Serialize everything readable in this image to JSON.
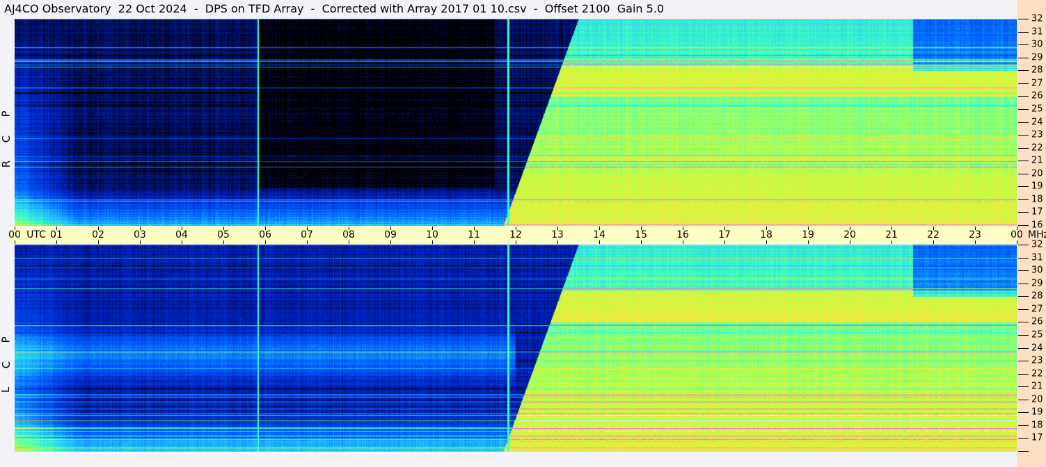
{
  "title": "AJ4CO Observatory  22 Oct 2024  -  DPS on TFD Array  -  Corrected with Array 2017 01 10.csv  -  Offset 2100  Gain 5.0",
  "chart_data": {
    "type": "heatmap",
    "panels": [
      {
        "label_letters": [
          "R",
          "C",
          "P"
        ]
      },
      {
        "label_letters": [
          "L",
          "C",
          "P"
        ]
      }
    ],
    "x_tick_labels": [
      "00",
      "01",
      "02",
      "03",
      "04",
      "05",
      "06",
      "07",
      "08",
      "09",
      "10",
      "11",
      "12",
      "13",
      "14",
      "15",
      "16",
      "17",
      "18",
      "19",
      "20",
      "21",
      "22",
      "23",
      "00"
    ],
    "x_unit_label": "UTC",
    "y_unit_label": "MHz",
    "xlim_hours_utc": [
      0,
      24
    ],
    "ylim_mhz": [
      16,
      32
    ],
    "y_tick_labels": [
      "32",
      "31",
      "30",
      "29",
      "28",
      "27",
      "26",
      "25",
      "24",
      "23",
      "22",
      "21",
      "20",
      "19",
      "18",
      "17",
      "16"
    ],
    "colormap": [
      "#000000",
      "#0020c0",
      "#0060ff",
      "#20c0ff",
      "#40ffc0",
      "#c0ff40",
      "#ffe040",
      "#ff40ff",
      "#ffffff"
    ],
    "day_transition_utc_approx": 12.3
  }
}
